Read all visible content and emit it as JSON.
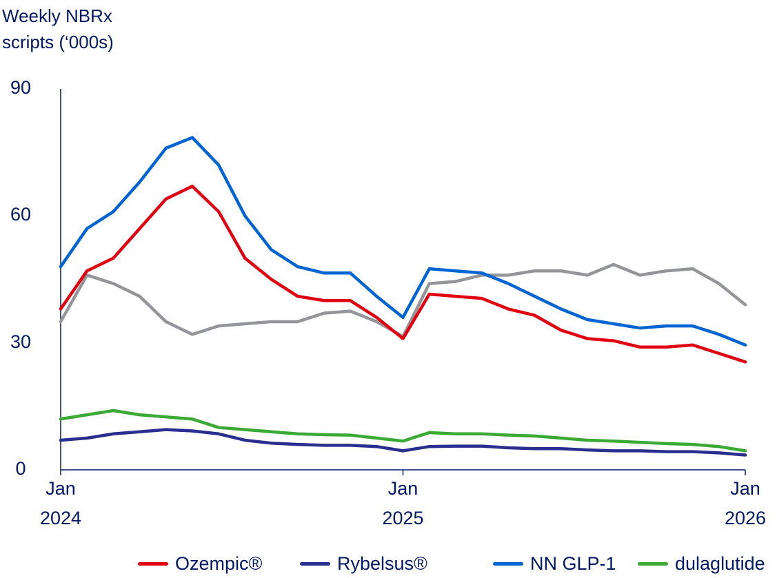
{
  "chart_data": {
    "type": "line",
    "title": "Weekly NBRx\nscripts (‘000s)",
    "x": [
      0,
      4,
      8,
      12,
      16,
      20,
      24,
      28,
      32,
      36,
      40,
      44,
      48,
      52,
      56,
      60,
      64,
      68,
      72,
      76,
      80,
      84,
      88,
      92,
      96,
      100,
      104
    ],
    "xlim": [
      0,
      104
    ],
    "xticks": [
      {
        "value": 0,
        "label": "Jan\n2024"
      },
      {
        "value": 52,
        "label": "Jan\n2025"
      },
      {
        "value": 104,
        "label": "Jan\n2026"
      }
    ],
    "ylim": [
      0,
      90
    ],
    "yticks": [
      0,
      30,
      60,
      90
    ],
    "grid": false,
    "legend": "bottom",
    "series": [
      {
        "color": "#939598",
        "values": [
          35,
          46,
          44,
          41,
          35,
          32,
          34,
          34.5,
          35,
          35,
          37,
          37.5,
          35,
          31.5,
          44,
          44.5,
          46,
          46,
          47,
          47,
          46,
          48.5,
          46,
          47,
          47.5,
          44,
          39
        ]
      },
      {
        "name": "Ozempic®",
        "color": "#e1000f",
        "values": [
          38,
          47,
          50,
          57,
          64,
          67,
          61,
          50,
          45,
          41,
          40,
          40,
          36,
          31,
          41.5,
          41,
          40.5,
          38,
          36.5,
          33,
          31,
          30.5,
          29,
          29,
          29.5,
          27.5,
          25.5
        ]
      },
      {
        "name": "Rybelsus®",
        "color": "#2a2f8f",
        "values": [
          7,
          7.5,
          8.5,
          9,
          9.5,
          9.2,
          8.5,
          7,
          6.3,
          6,
          5.8,
          5.8,
          5.5,
          4.5,
          5.5,
          5.6,
          5.6,
          5.2,
          5,
          5,
          4.7,
          4.5,
          4.5,
          4.3,
          4.3,
          4,
          3.5
        ]
      },
      {
        "name": "NN GLP-1",
        "color": "#0064d2",
        "values": [
          48,
          57,
          61,
          68,
          76,
          78.5,
          72,
          60,
          52,
          48,
          46.5,
          46.5,
          41,
          36,
          47.5,
          47,
          46.5,
          44,
          41,
          38,
          35.5,
          34.5,
          33.5,
          34,
          34,
          32,
          29.5
        ]
      },
      {
        "name": "dulaglutide",
        "color": "#3aaa35",
        "values": [
          12,
          13,
          14,
          13,
          12.5,
          12,
          10,
          9.5,
          9,
          8.5,
          8.3,
          8.2,
          7.5,
          6.8,
          8.8,
          8.5,
          8.5,
          8.2,
          8,
          7.5,
          7,
          6.8,
          6.5,
          6.2,
          6,
          5.5,
          4.5
        ]
      }
    ]
  }
}
